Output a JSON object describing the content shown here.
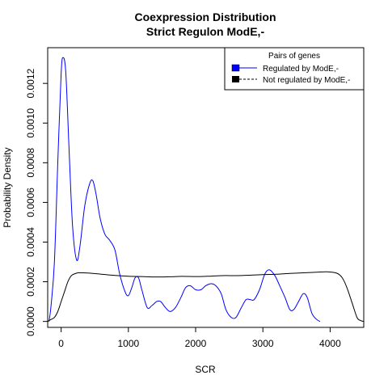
{
  "chart_data": {
    "type": "line",
    "title": [
      "Coexpression Distribution",
      "Strict Regulon ModE,-"
    ],
    "xlabel": "SCR",
    "ylabel": "Probability Density",
    "xlim": [
      -200,
      4500
    ],
    "ylim": [
      -3e-05,
      0.00138
    ],
    "x_ticks": [
      0,
      1000,
      2000,
      3000,
      4000
    ],
    "x_tick_labels": [
      "0",
      "1000",
      "2000",
      "3000",
      "4000"
    ],
    "y_ticks": [
      0,
      0.0002,
      0.0004,
      0.0006,
      0.0008,
      0.001,
      0.0012
    ],
    "y_tick_labels": [
      "0.0000",
      "0.0002",
      "0.0004",
      "0.0006",
      "0.0008",
      "0.0010",
      "0.0012"
    ],
    "grid": false,
    "legend": {
      "title": "Pairs of genes",
      "placement": "top-right",
      "entries": [
        "Regulated by  ModE,-",
        "Not regulated by  ModE,-"
      ]
    },
    "series": [
      {
        "name": "Regulated by  ModE,-",
        "color": "#0000ff",
        "x": [
          -180,
          -150,
          -100,
          -50,
          0,
          30,
          70,
          120,
          170,
          230,
          280,
          350,
          420,
          470,
          520,
          580,
          650,
          720,
          800,
          870,
          950,
          1000,
          1050,
          1100,
          1150,
          1200,
          1280,
          1350,
          1420,
          1480,
          1550,
          1620,
          1700,
          1780,
          1850,
          1920,
          2000,
          2080,
          2150,
          2230,
          2300,
          2380,
          2450,
          2530,
          2600,
          2680,
          2750,
          2810,
          2870,
          2950,
          3030,
          3100,
          3180,
          3250,
          3330,
          3400,
          3460,
          3530,
          3600,
          3660,
          3730,
          3800,
          3850
        ],
        "y": [
          0.0,
          8e-05,
          0.0003,
          0.0008,
          0.00125,
          0.00133,
          0.00125,
          0.00085,
          0.00048,
          0.00031,
          0.00038,
          0.00058,
          0.00069,
          0.00071,
          0.00064,
          0.00052,
          0.00044,
          0.00041,
          0.00036,
          0.00024,
          0.00015,
          0.00013,
          0.00017,
          0.00022,
          0.00022,
          0.00016,
          7e-05,
          8e-05,
          0.0001,
          0.0001,
          7e-05,
          5e-05,
          7e-05,
          0.00012,
          0.00017,
          0.00018,
          0.00016,
          0.00016,
          0.00018,
          0.00019,
          0.00018,
          0.00014,
          6e-05,
          2e-05,
          2e-05,
          7e-05,
          0.00011,
          0.00011,
          0.00011,
          0.00016,
          0.00024,
          0.00026,
          0.00023,
          0.00018,
          0.00012,
          6e-05,
          6e-05,
          0.0001,
          0.00014,
          0.00012,
          4e-05,
          1e-05,
          0.0
        ]
      },
      {
        "name": "Not regulated by  ModE,-",
        "color": "#000000",
        "x": [
          -200,
          -150,
          -100,
          -50,
          0,
          50,
          100,
          150,
          200,
          250,
          300,
          400,
          600,
          800,
          1000,
          1200,
          1400,
          1600,
          1800,
          2000,
          2200,
          2400,
          2600,
          2800,
          3000,
          3200,
          3400,
          3600,
          3800,
          3950,
          4100,
          4180,
          4250,
          4330,
          4400,
          4450,
          4500
        ],
        "y": [
          0.0,
          1e-05,
          2e-05,
          5e-05,
          0.0001,
          0.00015,
          0.0002,
          0.00023,
          0.00024,
          0.000245,
          0.000245,
          0.000244,
          0.000238,
          0.000232,
          0.000228,
          0.000226,
          0.000224,
          0.000225,
          0.000227,
          0.000226,
          0.000228,
          0.000231,
          0.000231,
          0.000233,
          0.000236,
          0.000238,
          0.000242,
          0.000245,
          0.000248,
          0.00025,
          0.000243,
          0.00022,
          0.00017,
          9e-05,
          2e-05,
          5e-06,
          0.0
        ]
      }
    ]
  }
}
